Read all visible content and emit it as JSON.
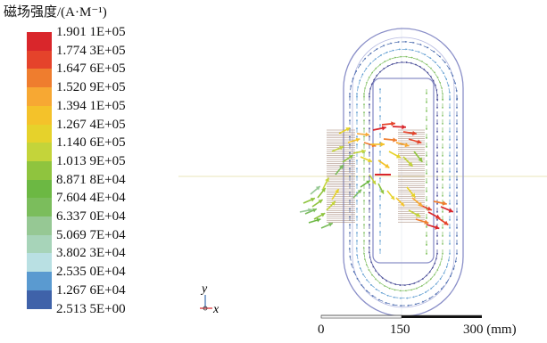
{
  "legend": {
    "title": "磁场强度/(A·M⁻¹)",
    "entries": [
      {
        "label": "1.901 1E+05",
        "color": "#d9262b"
      },
      {
        "label": "1.774 3E+05",
        "color": "#e5432b"
      },
      {
        "label": "1.647 6E+05",
        "color": "#ef7d2e"
      },
      {
        "label": "1.520 9E+05",
        "color": "#f7a833"
      },
      {
        "label": "1.394 1E+05",
        "color": "#f4c22a"
      },
      {
        "label": "1.267 4E+05",
        "color": "#e6d22b"
      },
      {
        "label": "1.140 6E+05",
        "color": "#c4d43a"
      },
      {
        "label": "1.013 9E+05",
        "color": "#8fc43e"
      },
      {
        "label": "8.871 8E+04",
        "color": "#6cb843"
      },
      {
        "label": "7.604 4E+04",
        "color": "#7bbd5c"
      },
      {
        "label": "6.337 0E+04",
        "color": "#96c894"
      },
      {
        "label": "5.069 7E+04",
        "color": "#a7d4b9"
      },
      {
        "label": "3.802 3E+04",
        "color": "#b9e0e3"
      },
      {
        "label": "2.535 0E+04",
        "color": "#5a9ad0"
      },
      {
        "label": "1.267 6E+04",
        "color": "#3f62a9"
      },
      {
        "label": "2.513 5E+00",
        "color": "#3b3f8f"
      }
    ]
  },
  "axes": {
    "y_label": "y",
    "x_label": "x"
  },
  "scale_bar": {
    "ticks": [
      "0",
      "150",
      "300 (mm)"
    ]
  },
  "colors": {
    "core_outline": "#8a8fc8",
    "reference_line": "#e8e6b8"
  }
}
